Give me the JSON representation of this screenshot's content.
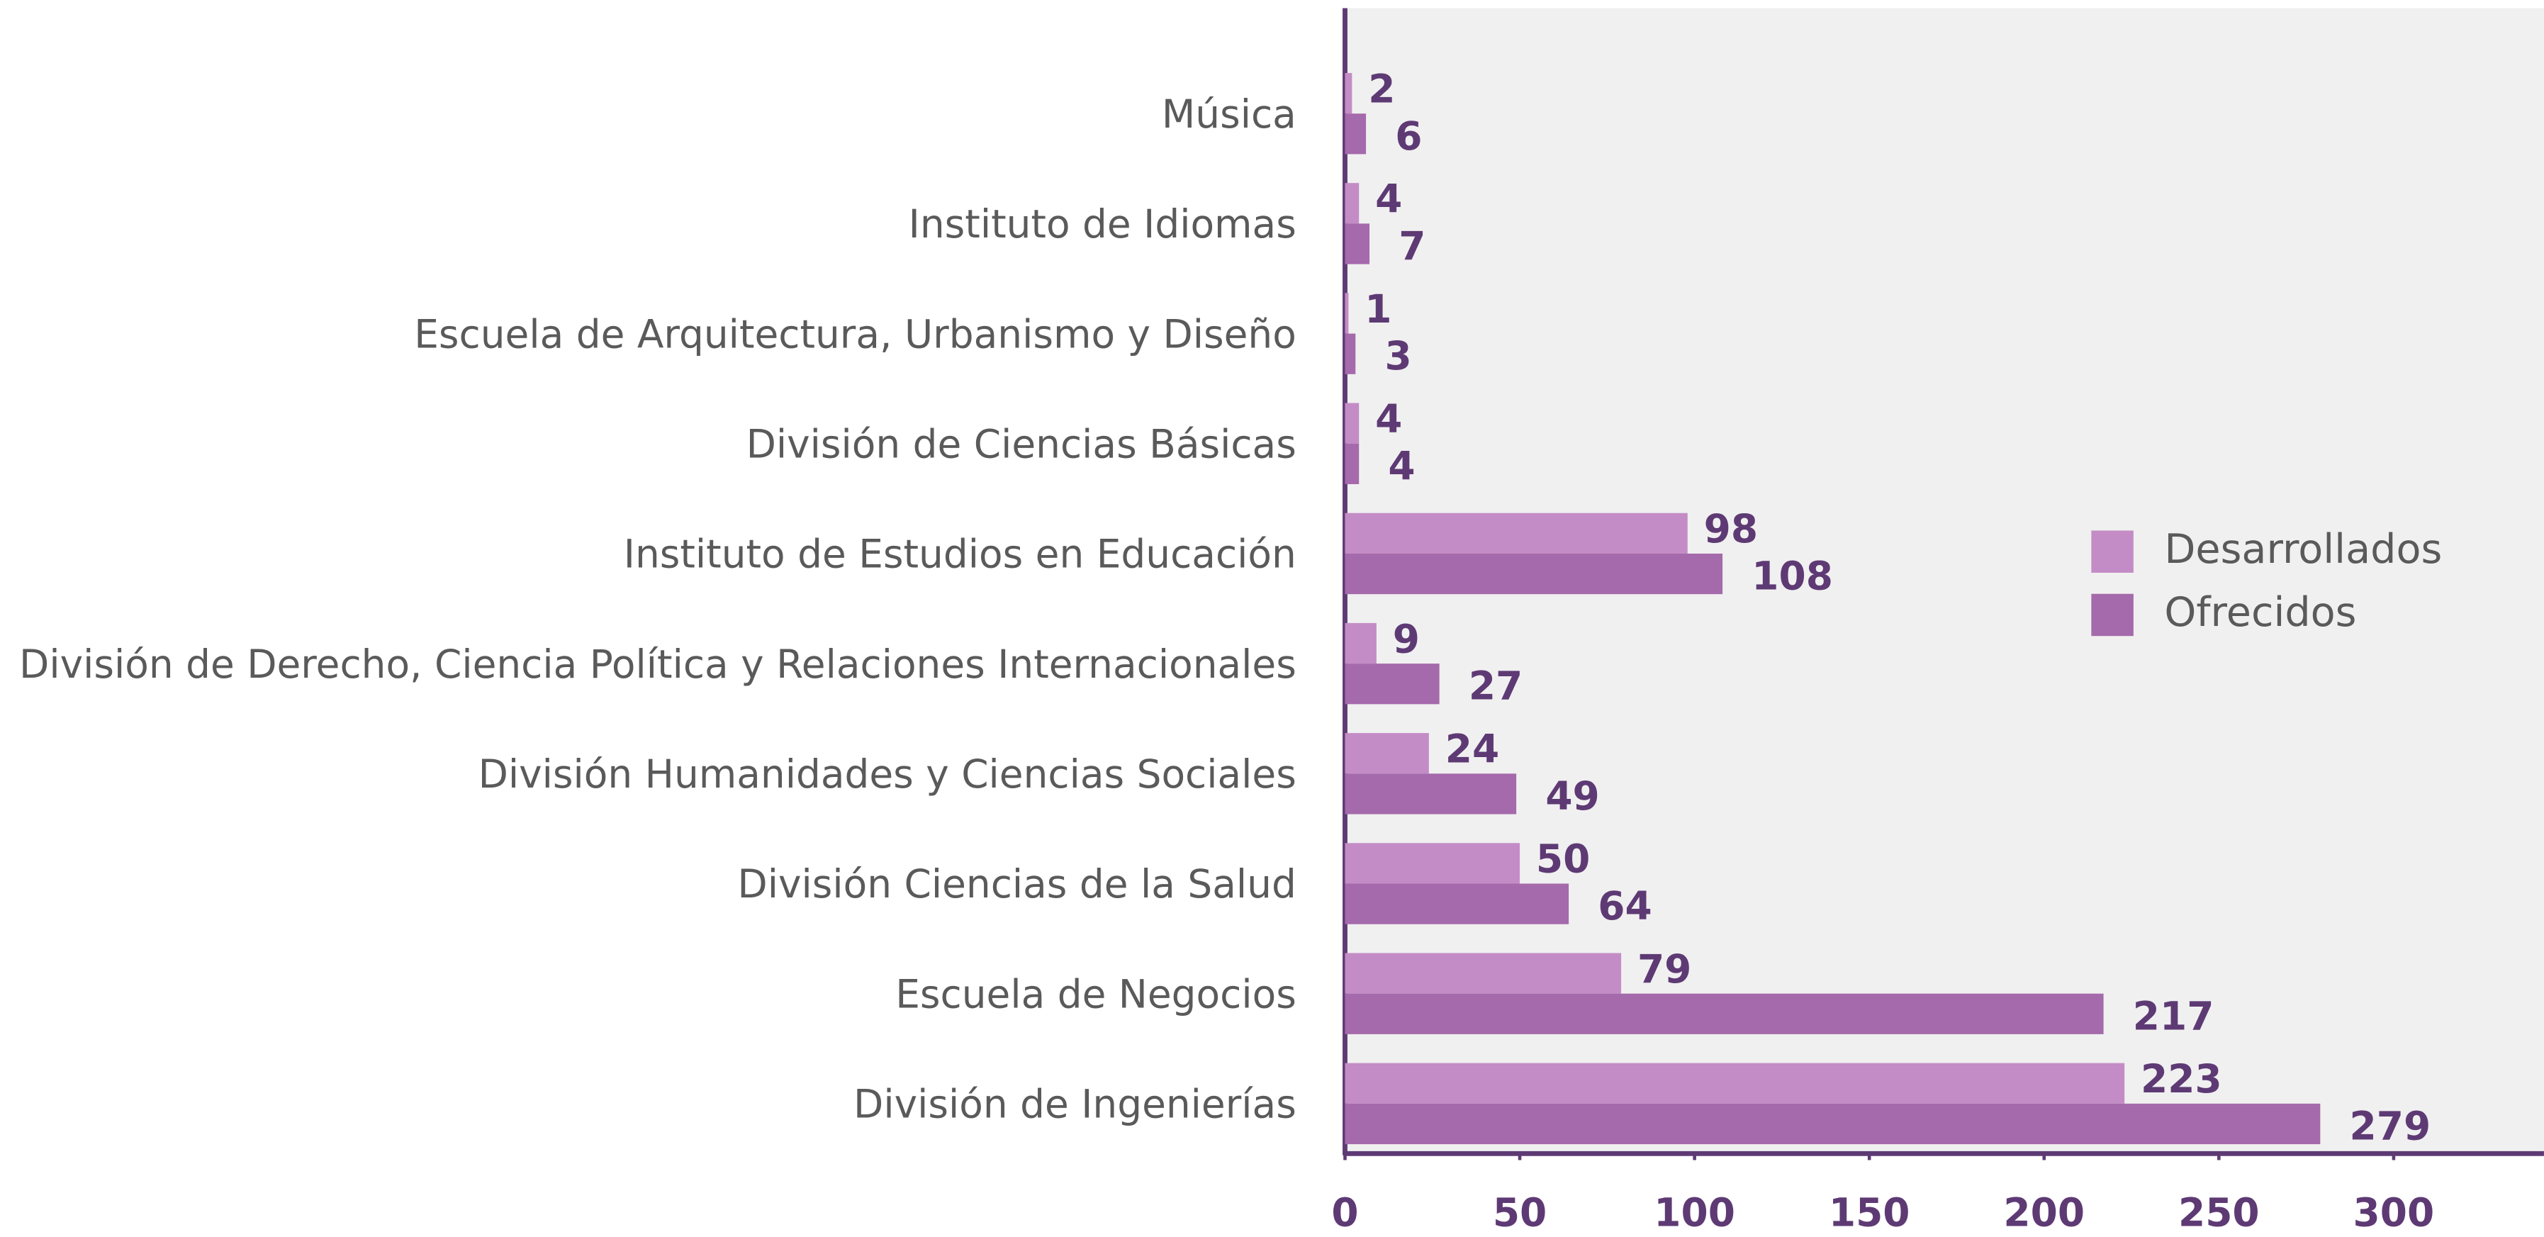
{
  "chart_data": {
    "type": "barh",
    "categories": [
      "Música",
      "Instituto de Idiomas",
      "Escuela de Arquitectura, Urbanismo y Diseño",
      "División de Ciencias Básicas",
      "Instituto de Estudios en Educación",
      "División de Derecho, Ciencia Política y Relaciones Internacionales",
      "División Humanidades y Ciencias Sociales",
      "División Ciencias de la Salud",
      "Escuela de Negocios",
      "División de Ingenierías"
    ],
    "series": [
      {
        "name": "Desarrollados",
        "color": "#c48cc6",
        "values": [
          2,
          4,
          1,
          4,
          98,
          9,
          24,
          50,
          79,
          223
        ]
      },
      {
        "name": "Ofrecidos",
        "color": "#a56aab",
        "values": [
          6,
          7,
          3,
          4,
          108,
          27,
          49,
          64,
          217,
          279
        ]
      }
    ],
    "xlim": [
      0,
      343
    ],
    "xticks": [
      0,
      50,
      100,
      150,
      200,
      250,
      300
    ],
    "grid": false,
    "legend": "right"
  }
}
